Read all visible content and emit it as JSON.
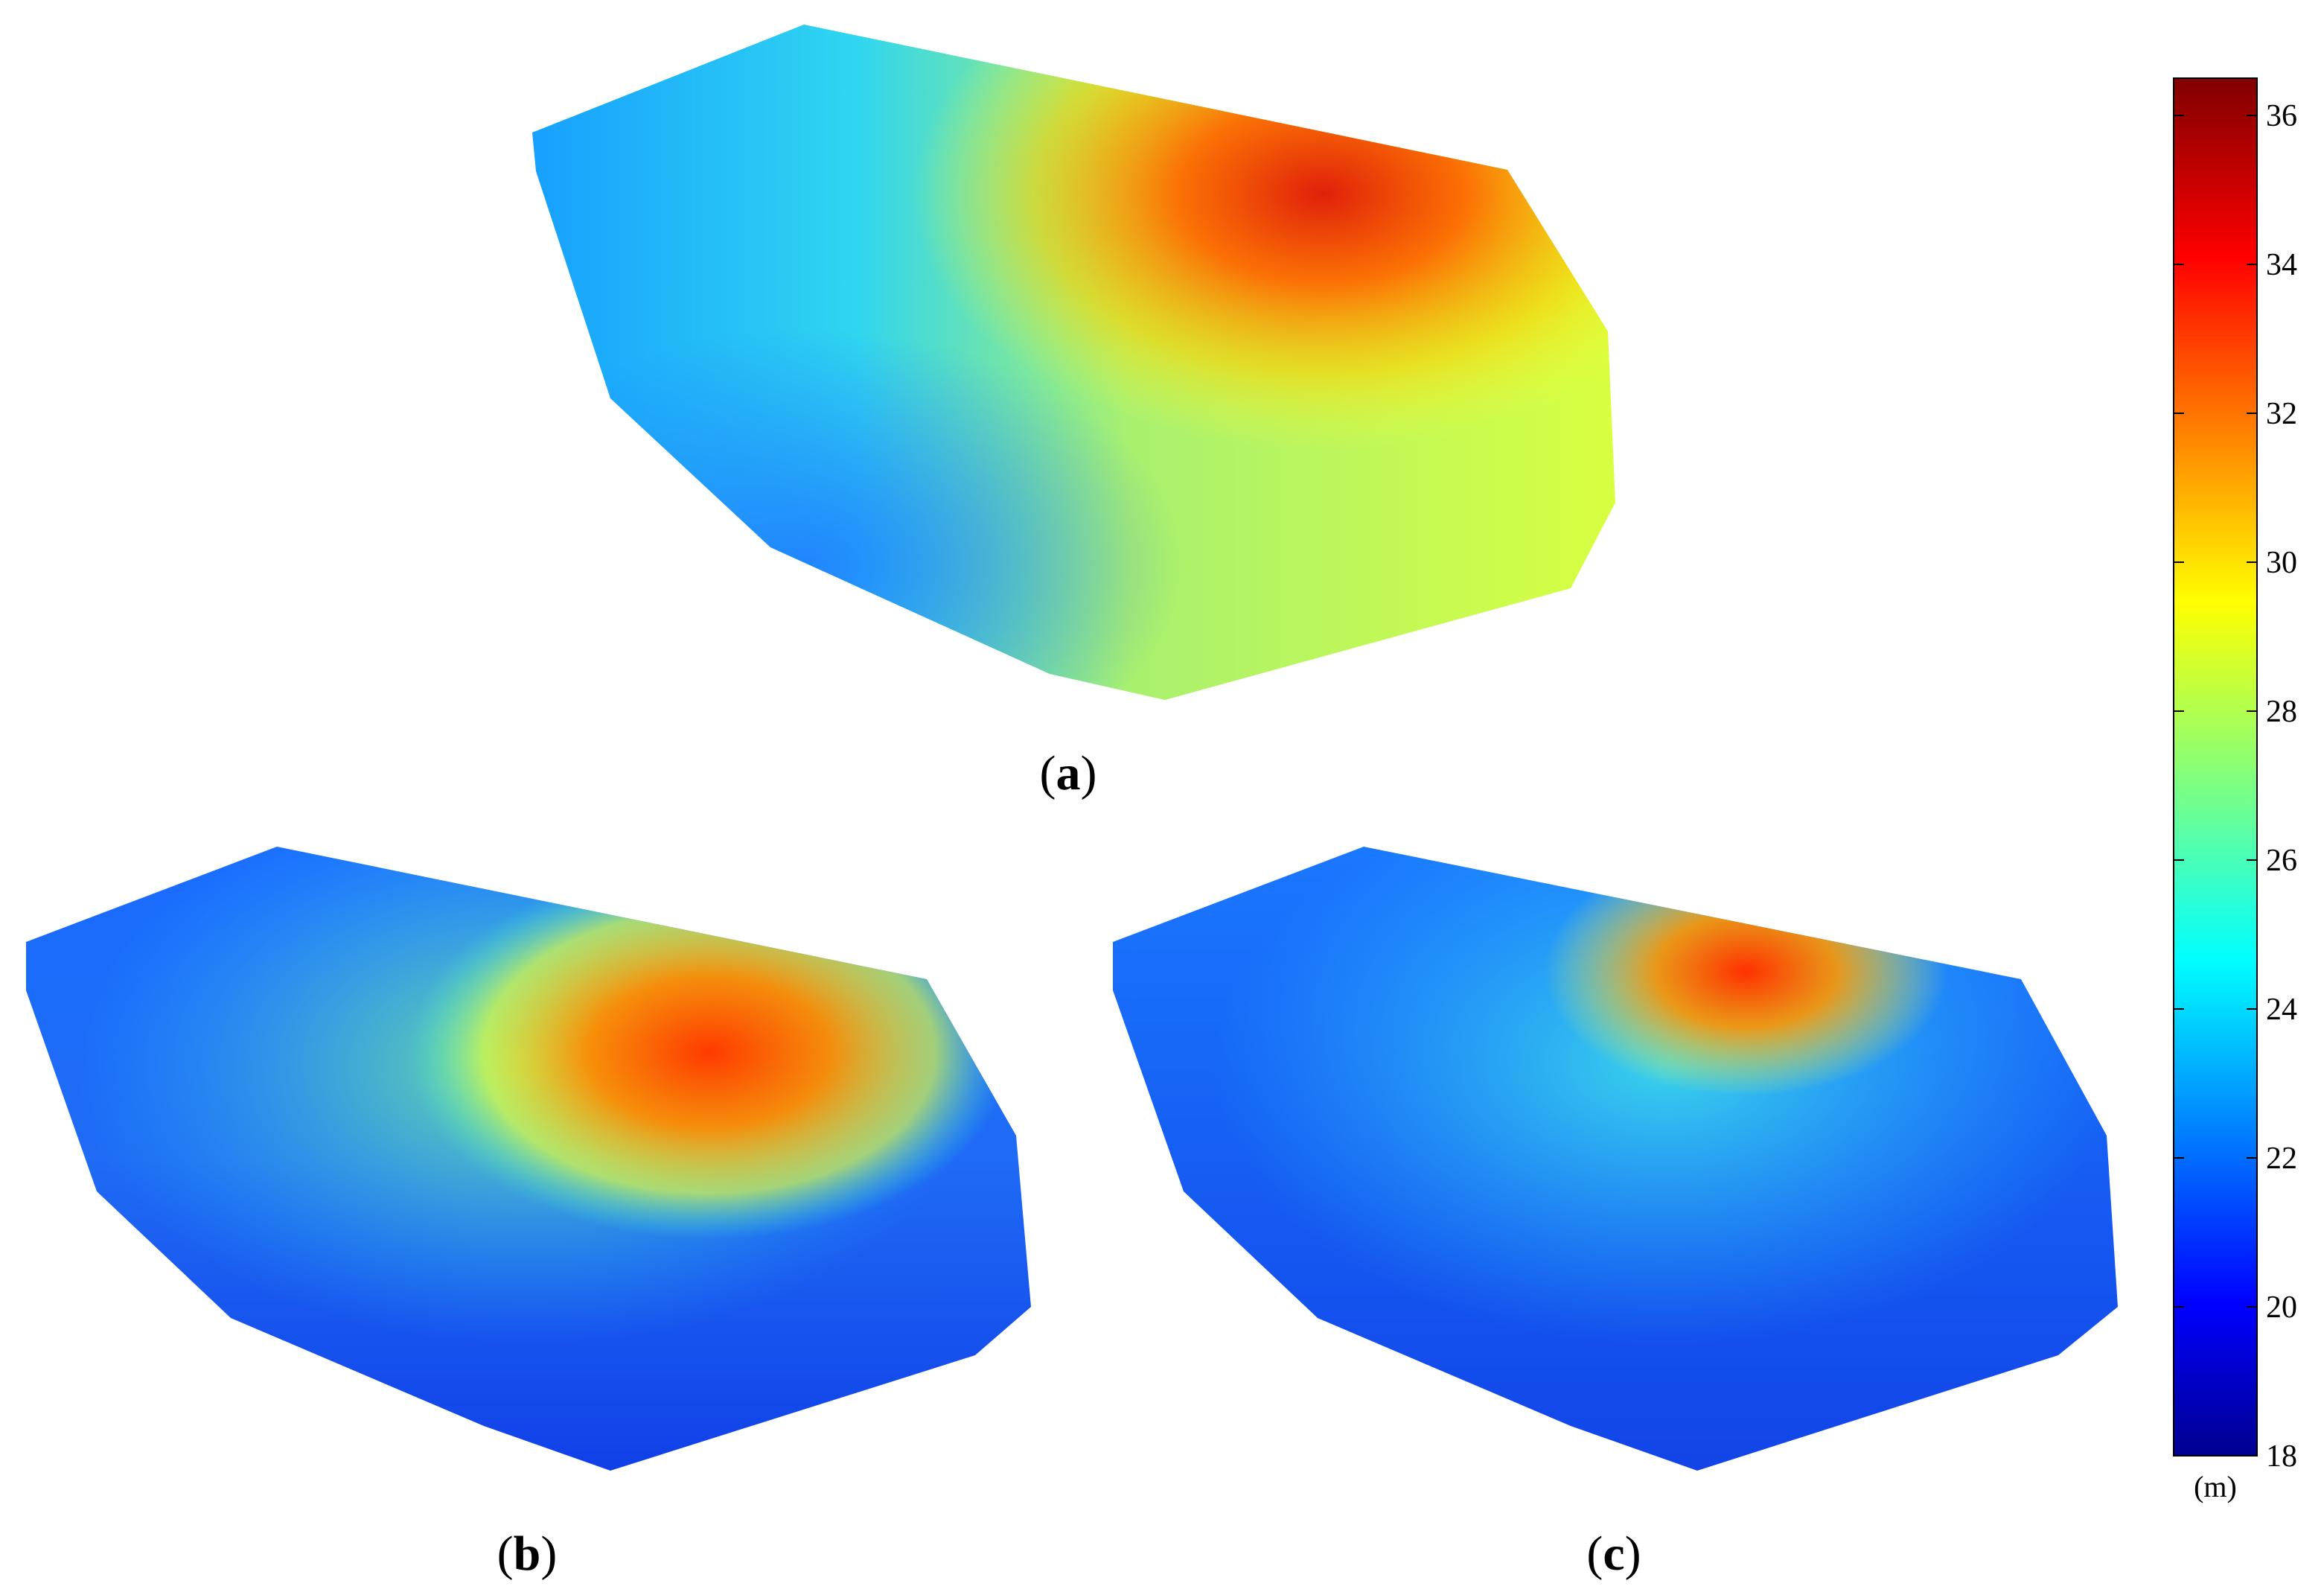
{
  "chart_data": {
    "type": "heatmap",
    "panels": [
      {
        "label_open": "(",
        "label_letter": "a",
        "label_close": ")"
      },
      {
        "label_open": "(",
        "label_letter": "b",
        "label_close": ")"
      },
      {
        "label_open": "(",
        "label_letter": "c",
        "label_close": ")"
      }
    ],
    "colorbar": {
      "min": 18,
      "max": 36.5,
      "ticks": [
        18,
        20,
        22,
        24,
        26,
        28,
        30,
        32,
        34,
        36
      ],
      "unit": "(m)",
      "colormap": "jet"
    }
  }
}
